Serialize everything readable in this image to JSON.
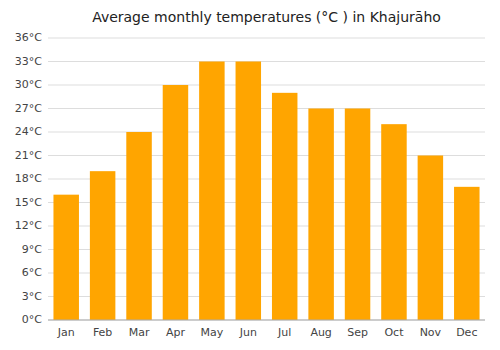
{
  "chart_data": {
    "type": "bar",
    "title": "Average monthly temperatures (°C ) in Khajurāho",
    "categories": [
      "Jan",
      "Feb",
      "Mar",
      "Apr",
      "May",
      "Jun",
      "Jul",
      "Aug",
      "Sep",
      "Oct",
      "Nov",
      "Dec"
    ],
    "values": [
      16,
      19,
      24,
      30,
      33,
      33,
      29,
      27,
      27,
      25,
      21,
      17
    ],
    "color": "#FFA500",
    "ylim": [
      0,
      36
    ],
    "yticks": [
      {
        "value": 0,
        "label": "0°C"
      },
      {
        "value": 3,
        "label": "3°C"
      },
      {
        "value": 6,
        "label": "6°C"
      },
      {
        "value": 9,
        "label": "9°C"
      },
      {
        "value": 12,
        "label": "12°C"
      },
      {
        "value": 15,
        "label": "15°C"
      },
      {
        "value": 18,
        "label": "18°C"
      },
      {
        "value": 21,
        "label": "21°C"
      },
      {
        "value": 24,
        "label": "24°C"
      },
      {
        "value": 27,
        "label": "27°C"
      },
      {
        "value": 30,
        "label": "30°C"
      },
      {
        "value": 33,
        "label": "33°C"
      },
      {
        "value": 36,
        "label": "36°C"
      }
    ],
    "grid": true
  }
}
